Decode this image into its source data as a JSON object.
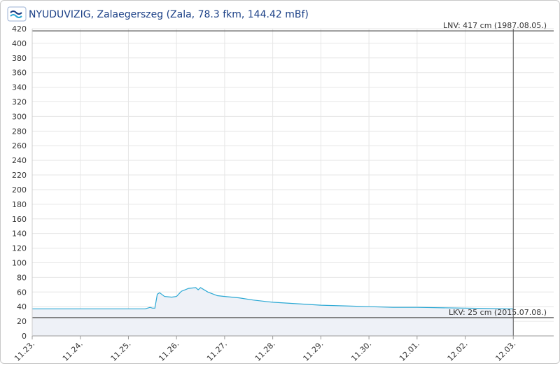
{
  "chart_data": {
    "type": "area",
    "title": "NYUDUVIZIG, Zalaegerszeg (Zala, 78.3 fkm, 144.42 mBf)",
    "x": [
      0,
      1,
      2,
      2.35,
      2.45,
      2.5,
      2.55,
      2.6,
      2.65,
      2.75,
      2.9,
      3.0,
      3.1,
      3.25,
      3.4,
      3.45,
      3.5,
      3.65,
      3.85,
      4.0,
      4.3,
      4.6,
      5.0,
      5.5,
      6.0,
      6.5,
      7.0,
      7.5,
      8.0,
      9.0,
      10.0
    ],
    "values": [
      37,
      37,
      37,
      37,
      39,
      38,
      38,
      57,
      59,
      54,
      53,
      54,
      61,
      65,
      66,
      63,
      66,
      60,
      55,
      54,
      52,
      49,
      46,
      44,
      42,
      41,
      40,
      39,
      39,
      38,
      37
    ],
    "color": "#2aa8d4",
    "fill": "#eef1f7",
    "xlim": [
      0,
      10.84
    ],
    "ylim": [
      0,
      420
    ],
    "xticks": [
      {
        "value": 0,
        "label": "11.23."
      },
      {
        "value": 1,
        "label": "11.24."
      },
      {
        "value": 2,
        "label": "11.25."
      },
      {
        "value": 3,
        "label": "11.26."
      },
      {
        "value": 4,
        "label": "11.27."
      },
      {
        "value": 5,
        "label": "11.28."
      },
      {
        "value": 6,
        "label": "11.29."
      },
      {
        "value": 7,
        "label": "11.30."
      },
      {
        "value": 8,
        "label": "12.01."
      },
      {
        "value": 9,
        "label": "12.02."
      },
      {
        "value": 10,
        "label": "12.03."
      }
    ],
    "yticks": [
      0,
      20,
      40,
      60,
      80,
      100,
      120,
      140,
      160,
      180,
      200,
      220,
      240,
      260,
      280,
      300,
      320,
      340,
      360,
      380,
      400,
      420
    ],
    "grid": true,
    "reference_lines": [
      {
        "value": 417,
        "label": "LNV: 417 cm (1987.08.05.)"
      },
      {
        "value": 25,
        "label": "LKV: 25 cm (2015.07.08.)"
      }
    ],
    "vlines": [
      10
    ]
  }
}
